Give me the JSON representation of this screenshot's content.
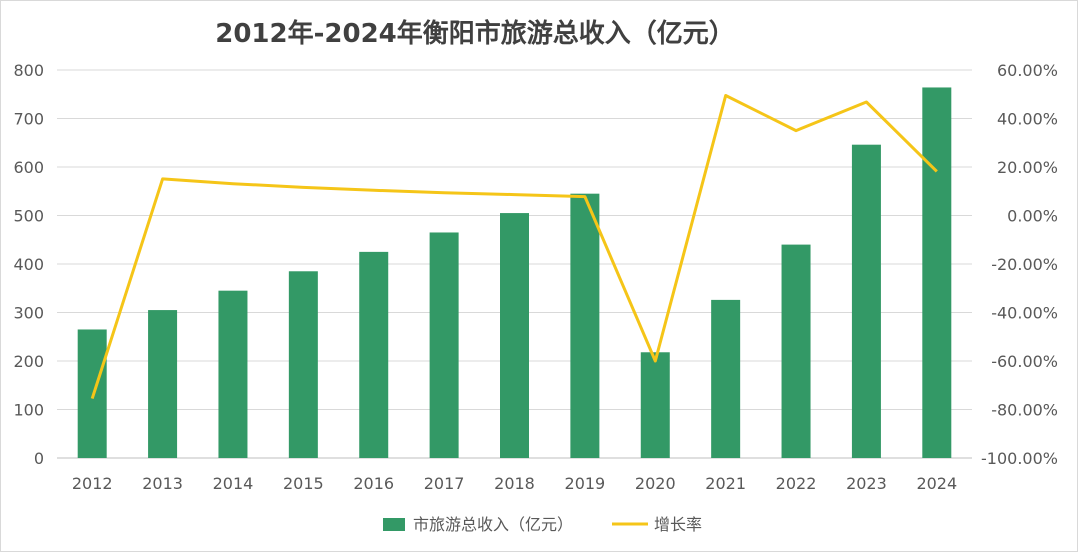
{
  "chart_data": {
    "type": "bar",
    "title": "2012年-2024年衡阳市旅游总收入（亿元）",
    "categories": [
      "2012",
      "2013",
      "2014",
      "2015",
      "2016",
      "2017",
      "2018",
      "2019",
      "2020",
      "2021",
      "2022",
      "2023",
      "2024"
    ],
    "series": [
      {
        "name": "市旅游总收入（亿元）",
        "type": "bar",
        "axis": "left",
        "color": "#339966",
        "values": [
          265,
          305,
          345,
          385,
          425,
          465,
          505,
          545,
          218,
          326,
          440,
          646,
          764
        ]
      },
      {
        "name": "增长率",
        "type": "line",
        "axis": "right",
        "color": "#F5C518",
        "values": [
          -75.5,
          15.1,
          13.1,
          11.6,
          10.4,
          9.4,
          8.6,
          7.8,
          -60.0,
          49.5,
          35.0,
          46.8,
          18.2
        ]
      }
    ],
    "y_left": {
      "min": 0,
      "max": 800,
      "ticks": [
        "0",
        "100",
        "200",
        "300",
        "400",
        "500",
        "600",
        "700",
        "800"
      ]
    },
    "y_right": {
      "min": -100,
      "max": 60,
      "ticks": [
        "-100.00%",
        "-80.00%",
        "-60.00%",
        "-40.00%",
        "-20.00%",
        "0.00%",
        "20.00%",
        "40.00%",
        "60.00%"
      ]
    },
    "grid": true,
    "legend_position": "bottom"
  }
}
